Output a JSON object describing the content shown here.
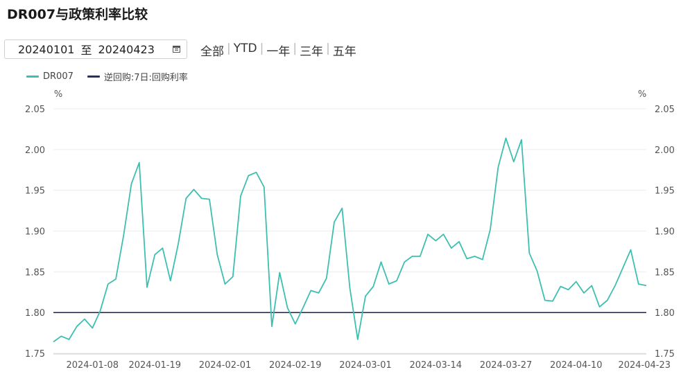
{
  "title": "DR007与政策利率比较",
  "date_range": {
    "start": "20240101",
    "separator": "至",
    "end": "20240423",
    "icon": "calendar-icon"
  },
  "range_buttons": [
    {
      "key": "all",
      "label": "全部"
    },
    {
      "key": "ytd",
      "label": "YTD"
    },
    {
      "key": "1y",
      "label": "一年"
    },
    {
      "key": "3y",
      "label": "三年"
    },
    {
      "key": "5y",
      "label": "五年"
    }
  ],
  "colors": {
    "dr007": "#3dbfb0",
    "policy": "#2b2d5c",
    "grid": "#ececec",
    "axis_text": "#555555"
  },
  "chart_data": {
    "type": "line",
    "title": "DR007与政策利率比较",
    "y_unit_left": "%",
    "y_unit_right": "%",
    "ylim": [
      1.75,
      2.05
    ],
    "yticks": [
      "1.75",
      "1.80",
      "1.85",
      "1.90",
      "1.95",
      "2.00",
      "2.05"
    ],
    "xtick_labels": [
      "2024-01-08",
      "2024-01-19",
      "2024-02-01",
      "2024-02-19",
      "2024-03-01",
      "2024-03-14",
      "2024-03-27",
      "2024-04-10",
      "2024-04-23"
    ],
    "xtick_index": [
      5,
      13,
      22,
      31,
      40,
      49,
      58,
      67,
      76
    ],
    "grid": true,
    "legend_position": "top-left",
    "series": [
      {
        "name": "DR007",
        "key": "dr007",
        "values": [
          1.764,
          1.771,
          1.767,
          1.783,
          1.792,
          1.781,
          1.802,
          1.835,
          1.841,
          1.895,
          1.958,
          1.984,
          1.831,
          1.871,
          1.879,
          1.839,
          1.884,
          1.94,
          1.951,
          1.94,
          1.939,
          1.871,
          1.835,
          1.844,
          1.943,
          1.968,
          1.972,
          1.954,
          1.783,
          1.849,
          1.806,
          1.786,
          1.806,
          1.827,
          1.824,
          1.842,
          1.911,
          1.928,
          1.83,
          1.767,
          1.82,
          1.832,
          1.862,
          1.835,
          1.839,
          1.862,
          1.869,
          1.869,
          1.896,
          1.888,
          1.896,
          1.879,
          1.887,
          1.866,
          1.869,
          1.865,
          1.902,
          1.978,
          2.014,
          1.985,
          2.012,
          1.873,
          1.851,
          1.815,
          1.814,
          1.832,
          1.828,
          1.838,
          1.824,
          1.833,
          1.807,
          1.815,
          1.833,
          1.855,
          1.877,
          1.835,
          1.833
        ]
      },
      {
        "name": "逆回购:7日:回购利率",
        "key": "policy",
        "values": [
          1.8,
          1.8
        ]
      }
    ]
  }
}
